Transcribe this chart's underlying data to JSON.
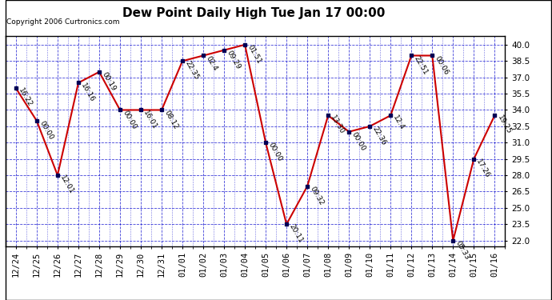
{
  "title": "Dew Point Daily High Tue Jan 17 00:00",
  "copyright": "Copyright 2006 Curtronics.com",
  "background_color": "#ffffff",
  "grid_color": "#0000cc",
  "line_color": "#cc0000",
  "marker_color": "#000055",
  "xlabels": [
    "12/24",
    "12/25",
    "12/26",
    "12/27",
    "12/28",
    "12/29",
    "12/30",
    "12/31",
    "01/01",
    "01/02",
    "01/03",
    "01/04",
    "01/05",
    "01/06",
    "01/07",
    "01/08",
    "01/09",
    "01/10",
    "01/11",
    "01/12",
    "01/13",
    "01/14",
    "01/15",
    "01/16"
  ],
  "x_indices": [
    0,
    1,
    2,
    3,
    4,
    5,
    6,
    7,
    8,
    9,
    10,
    11,
    12,
    13,
    14,
    15,
    16,
    17,
    18,
    19,
    20,
    21,
    22,
    23
  ],
  "y_values": [
    36.0,
    33.0,
    28.0,
    36.5,
    37.5,
    34.0,
    34.0,
    34.0,
    38.5,
    39.0,
    39.5,
    40.0,
    31.0,
    23.5,
    27.0,
    33.5,
    32.0,
    32.5,
    33.5,
    39.0,
    39.0,
    22.0,
    29.5,
    33.5
  ],
  "point_labels": [
    "16:22",
    "00:00",
    "12:01",
    "16:16",
    "00:19",
    "00:00",
    "16:01",
    "08:12",
    "22:35",
    "02:4",
    "09:29",
    "01:51",
    "00:00",
    "20:11",
    "09:32",
    "13:30",
    "00:00",
    "22:36",
    "12:4",
    "22:51",
    "00:06",
    "05:33",
    "17:26",
    "19:25"
  ],
  "ylim": [
    21.5,
    40.8
  ],
  "yticks": [
    22.0,
    23.5,
    25.0,
    26.5,
    28.0,
    29.5,
    31.0,
    32.5,
    34.0,
    35.5,
    37.0,
    38.5,
    40.0
  ],
  "title_fontsize": 11,
  "label_fontsize": 6.5,
  "tick_fontsize": 7.5
}
